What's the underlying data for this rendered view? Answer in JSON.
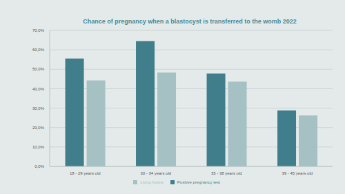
{
  "chart_data": {
    "type": "bar",
    "title": "Chance of pregnancy when a blastocyst is transferred to the womb 2022",
    "categories": [
      "18 - 29 years old",
      "30 - 34 years old",
      "35 - 38 years old",
      "39 - 45 years old"
    ],
    "series": [
      {
        "name": "Positive pregnancy test",
        "color": "#3f7e8a",
        "values": [
          55.5,
          64.5,
          47.8,
          28.8
        ]
      },
      {
        "name": "Living foetus",
        "color": "#a6c1c3",
        "values": [
          44.2,
          48.3,
          43.6,
          26.2
        ]
      }
    ],
    "ylim": [
      0,
      70
    ],
    "yticks": [
      {
        "value": 0,
        "label": "0,0%"
      },
      {
        "value": 10,
        "label": "10,0%"
      },
      {
        "value": 20,
        "label": "20,0%"
      },
      {
        "value": 30,
        "label": "30,0%"
      },
      {
        "value": 40,
        "label": "40,0%"
      },
      {
        "value": 50,
        "label": "50,0%"
      },
      {
        "value": 60,
        "label": "60,0%"
      },
      {
        "value": 70,
        "label": "70,0%"
      }
    ],
    "grid": true,
    "legend": "bottom"
  }
}
